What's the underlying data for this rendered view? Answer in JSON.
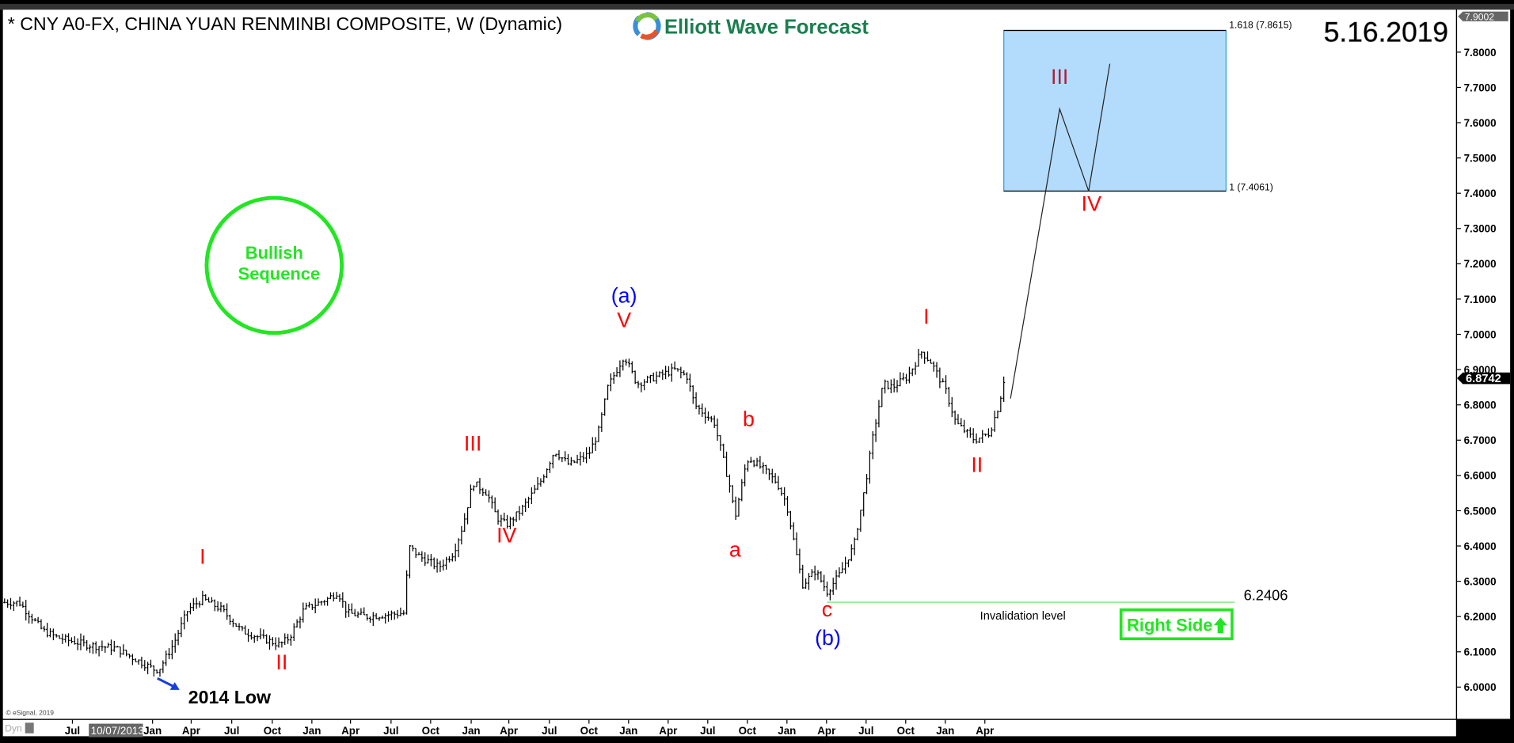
{
  "header": {
    "title": "* CNY A0-FX, CHINA YUAN RENMINBI COMPOSITE, W (Dynamic)",
    "logo_text": "Elliott Wave Forecast",
    "date": "5.16.2019"
  },
  "footer": {
    "copyright": "© eSignal, 2019",
    "dyn_label": "Dyn",
    "cursor_date": "10/07/2013"
  },
  "colors": {
    "wave_red": "#ff0000",
    "wave_blue": "#0000ff",
    "bullish_green": "#22e622",
    "fib_box": "#b3dcfc",
    "logo_green": "#1a7f4e"
  },
  "annotations": {
    "bullish": [
      "Bullish",
      "Sequence"
    ],
    "low_label": "2014 Low",
    "invalidation_label": "Invalidation level",
    "invalidation_value": "6.2406",
    "right_side": "Right Side",
    "fib_top": "1.618 (7.8615)",
    "fib_bottom": "1 (7.4061)"
  },
  "chart_data": {
    "type": "ohlc",
    "yaxis": {
      "ticks": [
        "7.8000",
        "7.7000",
        "7.6000",
        "7.5000",
        "7.4000",
        "7.3000",
        "7.2000",
        "7.1000",
        "7.0000",
        "6.9000",
        "6.8000",
        "6.7000",
        "6.6000",
        "6.5000",
        "6.4000",
        "6.3000",
        "6.2000",
        "6.1000",
        "6.0000"
      ],
      "top_value": "7.9002",
      "last_price": "6.8742",
      "range": [
        5.9,
        7.9
      ]
    },
    "xaxis": {
      "ticks": [
        "Jul",
        "Jan",
        "Apr",
        "Jul",
        "Oct",
        "Jan",
        "Apr",
        "Jul",
        "Oct",
        "Jan",
        "Apr",
        "Jul",
        "Oct",
        "Jan",
        "Apr",
        "Jul",
        "Oct",
        "Jan",
        "Apr",
        "Jul",
        "Oct",
        "Jan",
        "Apr"
      ]
    },
    "price_path": [
      [
        "2013-01-25",
        6.24
      ],
      [
        "2013-02-28",
        6.24
      ],
      [
        "2013-04-22",
        6.16
      ],
      [
        "2013-05-26",
        6.14
      ],
      [
        "2013-08-01",
        6.12
      ],
      [
        "2013-10-07",
        6.11
      ],
      [
        "2013-11-21",
        6.08
      ],
      [
        "2014-01-05",
        6.05
      ],
      [
        "2014-01-16",
        6.05
      ],
      [
        "2014-02-18",
        6.12
      ],
      [
        "2014-03-22",
        6.22
      ],
      [
        "2014-04-25",
        6.25
      ],
      [
        "2014-06-08",
        6.22
      ],
      [
        "2014-07-23",
        6.16
      ],
      [
        "2014-09-06",
        6.14
      ],
      [
        "2014-10-20",
        6.12
      ],
      [
        "2014-11-12",
        6.14
      ],
      [
        "2014-12-15",
        6.22
      ],
      [
        "2015-02-09",
        6.25
      ],
      [
        "2015-03-02",
        6.27
      ],
      [
        "2015-03-24",
        6.21
      ],
      [
        "2015-05-08",
        6.2
      ],
      [
        "2015-08-05",
        6.21
      ],
      [
        "2015-08-12",
        6.4
      ],
      [
        "2015-09-08",
        6.37
      ],
      [
        "2015-10-22",
        6.34
      ],
      [
        "2015-11-25",
        6.38
      ],
      [
        "2015-12-17",
        6.46
      ],
      [
        "2016-01-09",
        6.58
      ],
      [
        "2016-02-11",
        6.55
      ],
      [
        "2016-03-04",
        6.48
      ],
      [
        "2016-03-26",
        6.46
      ],
      [
        "2016-04-28",
        6.5
      ],
      [
        "2016-06-12",
        6.58
      ],
      [
        "2016-07-15",
        6.67
      ],
      [
        "2016-08-18",
        6.63
      ],
      [
        "2016-10-02",
        6.66
      ],
      [
        "2016-10-24",
        6.72
      ],
      [
        "2016-11-16",
        6.85
      ],
      [
        "2016-12-23",
        6.94
      ],
      [
        "2017-01-22",
        6.86
      ],
      [
        "2017-03-06",
        6.88
      ],
      [
        "2017-04-20",
        6.9
      ],
      [
        "2017-05-16",
        6.88
      ],
      [
        "2017-06-03",
        6.8
      ],
      [
        "2017-07-18",
        6.75
      ],
      [
        "2017-08-25",
        6.56
      ],
      [
        "2017-09-05",
        6.48
      ],
      [
        "2017-09-28",
        6.62
      ],
      [
        "2017-10-06",
        6.65
      ],
      [
        "2017-11-07",
        6.62
      ],
      [
        "2017-12-10",
        6.58
      ],
      [
        "2018-01-02",
        6.52
      ],
      [
        "2018-01-24",
        6.38
      ],
      [
        "2018-02-09",
        6.29
      ],
      [
        "2018-03-08",
        6.33
      ],
      [
        "2018-04-04",
        6.27
      ],
      [
        "2018-05-03",
        6.32
      ],
      [
        "2018-06-05",
        6.4
      ],
      [
        "2018-06-28",
        6.55
      ],
      [
        "2018-07-20",
        6.72
      ],
      [
        "2018-08-12",
        6.86
      ],
      [
        "2018-09-03",
        6.85
      ],
      [
        "2018-10-07",
        6.88
      ],
      [
        "2018-11-09",
        6.95
      ],
      [
        "2018-12-01",
        6.92
      ],
      [
        "2019-01-04",
        6.84
      ],
      [
        "2019-01-27",
        6.75
      ],
      [
        "2019-03-10",
        6.7
      ],
      [
        "2019-04-13",
        6.72
      ],
      [
        "2019-05-05",
        6.8
      ],
      [
        "2019-05-16",
        6.87
      ]
    ],
    "projection_path": [
      [
        "2019-06-01",
        6.818
      ],
      [
        "2019-09-23",
        7.639
      ],
      [
        "2019-11-29",
        7.406
      ],
      [
        "2020-01-17",
        7.767
      ]
    ],
    "fib_zone": {
      "from": "2019-05-16",
      "to": "2020-10-11",
      "low": 7.4061,
      "high": 7.8615
    },
    "invalidation": {
      "from": "2018-04-04",
      "to": "2020-11-01",
      "price": 6.2406
    },
    "wave_labels": [
      {
        "text": "I",
        "date": "2014-04-25",
        "price": 6.35,
        "color": "red"
      },
      {
        "text": "II",
        "date": "2014-10-25",
        "price": 6.05,
        "color": "red"
      },
      {
        "text": "III",
        "date": "2016-01-09",
        "price": 6.67,
        "color": "red"
      },
      {
        "text": "IV",
        "date": "2016-03-26",
        "price": 6.41,
        "color": "red"
      },
      {
        "text": "V",
        "date": "2016-12-23",
        "price": 7.02,
        "color": "red"
      },
      {
        "text": "(a)",
        "date": "2016-12-23",
        "price": 7.09,
        "color": "blue"
      },
      {
        "text": "a",
        "date": "2017-09-05",
        "price": 6.37,
        "color": "red"
      },
      {
        "text": "b",
        "date": "2017-10-06",
        "price": 6.74,
        "color": "red"
      },
      {
        "text": "c",
        "date": "2018-04-04",
        "price": 6.2,
        "color": "red"
      },
      {
        "text": "(b)",
        "date": "2018-04-06",
        "price": 6.12,
        "color": "blue"
      },
      {
        "text": "I",
        "date": "2018-11-20",
        "price": 7.03,
        "color": "red"
      },
      {
        "text": "II",
        "date": "2019-03-15",
        "price": 6.61,
        "color": "red"
      },
      {
        "text": "III",
        "date": "2019-09-23",
        "price": 7.71,
        "color": "darkred"
      },
      {
        "text": "IV",
        "date": "2019-12-05",
        "price": 7.35,
        "color": "red"
      }
    ]
  }
}
